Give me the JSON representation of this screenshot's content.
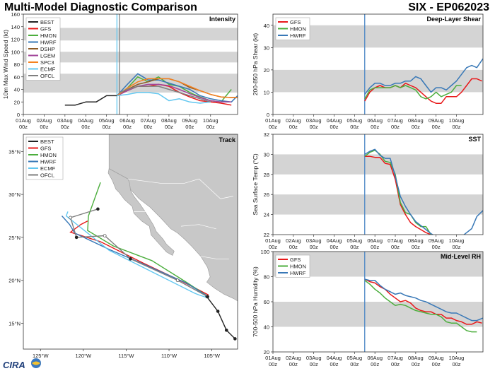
{
  "header": {
    "title": "Multi-Model Diagnostic Comparison",
    "storm_id": "SIX - EP062023"
  },
  "colors": {
    "BEST": "#222222",
    "GFS": "#e8191a",
    "HMON": "#4cae3d",
    "HWRF": "#3878b7",
    "DSHP": "#8c5a24",
    "LGEM": "#a2459a",
    "SPC3": "#f58220",
    "ECMF": "#62c7f0",
    "OFCL": "#7f7f7f",
    "band": "#d4d4d4",
    "land": "#c8c8c8",
    "vline": "#4a86c5"
  },
  "time_axis": {
    "tick_labels": [
      "01Aug\n00z",
      "02Aug\n00z",
      "03Aug\n00z",
      "04Aug\n00z",
      "05Aug\n00z",
      "06Aug\n00z",
      "07Aug\n00z",
      "08Aug\n00z",
      "09Aug\n00z",
      "10Aug\n00z"
    ],
    "xlim": [
      0,
      10.3
    ]
  },
  "footer": {
    "logo_text": "CIRA"
  },
  "chart_data": [
    {
      "id": "intensity",
      "type": "line",
      "title": "Intensity",
      "ylabel": "10m Max Wind Speed (kt)",
      "ylim": [
        0,
        160
      ],
      "yticks": [
        0,
        20,
        40,
        60,
        80,
        100,
        120,
        140,
        160
      ],
      "bands": [
        [
          35,
          65
        ],
        [
          83,
          100
        ],
        [
          118,
          138
        ]
      ],
      "vlines": [
        {
          "x": 4.5,
          "color": "#62c7f0"
        },
        {
          "x": 4.62,
          "color": "#7f7f7f"
        }
      ],
      "legend": [
        "BEST",
        "GFS",
        "HMON",
        "HWRF",
        "DSHP",
        "LGEM",
        "SPC3",
        "ECMF",
        "OFCL"
      ],
      "series": [
        {
          "name": "BEST",
          "x": [
            2.0,
            2.5,
            3.0,
            3.5,
            4.0,
            4.5
          ],
          "values": [
            15,
            15,
            20,
            20,
            30,
            30
          ]
        },
        {
          "name": "GFS",
          "x": [
            4.5,
            5.0,
            5.5,
            6.0,
            6.5,
            7.0,
            7.5,
            8.0,
            8.5,
            9.0,
            9.5,
            10.0
          ],
          "values": [
            30,
            38,
            45,
            45,
            48,
            45,
            35,
            28,
            22,
            20,
            18,
            15
          ]
        },
        {
          "name": "HMON",
          "x": [
            4.5,
            5.0,
            5.5,
            6.0,
            6.5,
            7.0,
            7.5,
            8.0,
            8.5,
            9.0,
            9.5,
            10.0
          ],
          "values": [
            30,
            42,
            60,
            52,
            60,
            48,
            45,
            35,
            28,
            22,
            20,
            40
          ]
        },
        {
          "name": "HWRF",
          "x": [
            4.5,
            5.0,
            5.5,
            6.0,
            6.5,
            7.0,
            7.5,
            8.0,
            8.5,
            9.0,
            9.5,
            10.0,
            10.3
          ],
          "values": [
            30,
            48,
            65,
            55,
            55,
            50,
            45,
            40,
            30,
            25,
            22,
            20,
            30
          ]
        },
        {
          "name": "DSHP",
          "x": [
            4.5,
            5.0,
            5.5,
            6.0,
            6.5,
            7.0,
            7.5,
            8.0,
            8.5,
            9.0,
            9.5,
            10.0,
            10.3
          ],
          "values": [
            30,
            40,
            48,
            52,
            57,
            57,
            52,
            43,
            38,
            32,
            28,
            27,
            27
          ]
        },
        {
          "name": "LGEM",
          "x": [
            4.5,
            5.0,
            5.5,
            6.0,
            6.5,
            7.0,
            7.5,
            8.0,
            8.5,
            9.0,
            9.5,
            10.0
          ],
          "values": [
            30,
            38,
            45,
            48,
            48,
            46,
            40,
            33,
            27,
            22,
            20,
            20
          ]
        },
        {
          "name": "SPC3",
          "x": [
            4.5,
            5.0,
            5.5,
            6.0,
            6.5,
            7.0,
            7.5,
            8.0,
            8.5,
            9.0,
            9.5,
            10.0,
            10.3
          ],
          "values": [
            30,
            42,
            52,
            57,
            57,
            57,
            52,
            45,
            38,
            32,
            28,
            27,
            27
          ]
        },
        {
          "name": "ECMF",
          "x": [
            4.5,
            5.0,
            5.5,
            6.0,
            6.5,
            7.0,
            7.5,
            8.0,
            8.5,
            9.0
          ],
          "values": [
            30,
            32,
            35,
            35,
            33,
            22,
            25,
            20,
            18,
            20
          ]
        },
        {
          "name": "OFCL",
          "x": [
            4.62,
            5.0,
            5.5,
            6.0,
            6.5,
            7.0,
            7.5,
            8.0,
            8.5,
            9.0
          ],
          "values": [
            35,
            40,
            45,
            45,
            45,
            40,
            35,
            30,
            25,
            20
          ]
        }
      ]
    },
    {
      "id": "shear",
      "type": "line",
      "title": "Deep-Layer Shear",
      "ylabel": "200-850 hPa Shear (kt)",
      "ylim": [
        0,
        45
      ],
      "yticks": [
        0,
        10,
        20,
        30,
        40
      ],
      "bands": [
        [
          10,
          20
        ],
        [
          30,
          40
        ]
      ],
      "vlines": [
        {
          "x": 4.5,
          "color": "#4a86c5"
        }
      ],
      "legend": [
        "GFS",
        "HMON",
        "HWRF"
      ],
      "series": [
        {
          "name": "GFS",
          "x": [
            4.5,
            4.75,
            5.0,
            5.25,
            5.5,
            5.75,
            6.0,
            6.25,
            6.5,
            6.75,
            7.0,
            7.25,
            7.5,
            7.75,
            8.0,
            8.25,
            8.5,
            8.75,
            9.0,
            9.25,
            9.5,
            9.75,
            10.0,
            10.25
          ],
          "values": [
            6,
            10,
            12,
            13,
            12,
            12,
            13,
            12,
            14,
            13,
            12,
            10,
            8,
            6,
            5,
            5,
            8,
            8,
            8,
            10,
            13,
            16,
            16,
            15
          ]
        },
        {
          "name": "HMON",
          "x": [
            4.5,
            4.75,
            5.0,
            5.25,
            5.5,
            5.75,
            6.0,
            6.25,
            6.5,
            6.75,
            7.0,
            7.25,
            7.5,
            7.75,
            8.0,
            8.25,
            8.5,
            8.75,
            9.0,
            9.25
          ],
          "values": [
            7,
            11,
            12,
            12,
            12,
            12,
            13,
            12,
            13,
            12,
            11,
            8,
            7,
            8,
            10,
            8,
            9,
            10,
            13,
            13
          ]
        },
        {
          "name": "HWRF",
          "x": [
            4.5,
            4.75,
            5.0,
            5.25,
            5.5,
            5.75,
            6.0,
            6.25,
            6.5,
            6.75,
            7.0,
            7.25,
            7.5,
            7.75,
            8.0,
            8.25,
            8.5,
            8.75,
            9.0,
            9.25,
            9.5,
            9.75,
            10.0,
            10.3
          ],
          "values": [
            9,
            12,
            14,
            14,
            13,
            13,
            14,
            14,
            15,
            15,
            17,
            16,
            13,
            10,
            12,
            12,
            11,
            13,
            15,
            18,
            21,
            22,
            21,
            25
          ]
        }
      ]
    },
    {
      "id": "track",
      "type": "scatter",
      "title": "Track",
      "xlim": [
        -127,
        -102
      ],
      "ylim": [
        12,
        37
      ],
      "xticks": [
        -125,
        -120,
        -115,
        -110,
        -105
      ],
      "xtick_labels": [
        "125°W",
        "120°W",
        "115°W",
        "110°W",
        "105°W"
      ],
      "yticks": [
        15,
        20,
        25,
        30,
        35
      ],
      "ytick_labels": [
        "15°N",
        "20°N",
        "25°N",
        "30°N",
        "35°N"
      ],
      "legend": [
        "BEST",
        "GFS",
        "HMON",
        "HWRF",
        "ECMF",
        "OFCL"
      ],
      "series": [
        {
          "name": "BEST",
          "lon": [
            -102.3,
            -103.3,
            -104.3,
            -105.6
          ],
          "lat": [
            13.2,
            14.2,
            16.4,
            18.1
          ]
        },
        {
          "name": "GFS",
          "lon": [
            -105.4,
            -108.3,
            -113.0,
            -118.0,
            -121.5,
            -120.3,
            -119.5
          ],
          "lat": [
            18.3,
            19.8,
            22.0,
            24.5,
            25.6,
            26.5,
            26.9
          ]
        },
        {
          "name": "HMON",
          "lon": [
            -105.4,
            -108.0,
            -112.0,
            -116.5,
            -119.5,
            -119.4,
            -118.0
          ],
          "lat": [
            18.1,
            19.8,
            22.3,
            24.0,
            25.8,
            27.5,
            31.4
          ]
        },
        {
          "name": "HWRF",
          "lon": [
            -105.4,
            -108.0,
            -113.0,
            -117.0,
            -121.0,
            -121.6,
            -122.5
          ],
          "lat": [
            18.1,
            19.7,
            21.9,
            23.6,
            25.5,
            26.5,
            27.5
          ]
        },
        {
          "name": "ECMF",
          "lon": [
            -105.6,
            -106.5,
            -107.0,
            -112.0,
            -117.0,
            -122.0,
            -121.8
          ],
          "lat": [
            18.0,
            18.3,
            18.5,
            21.0,
            23.5,
            27.5,
            28.0
          ]
        },
        {
          "name": "OFCL",
          "lon": [
            -105.5,
            -109.0,
            -114.5,
            -117.5,
            -120.8,
            -121.5,
            -118.3
          ],
          "lat": [
            18.1,
            20.0,
            22.5,
            25.2,
            25.0,
            27.3,
            28.3
          ]
        }
      ]
    },
    {
      "id": "sst",
      "type": "line",
      "title": "SST",
      "ylabel": "Sea Surface Temp (°C)",
      "ylim": [
        22,
        32
      ],
      "yticks": [
        22,
        24,
        26,
        28,
        30,
        32
      ],
      "bands": [
        [
          24,
          26
        ],
        [
          28,
          30
        ]
      ],
      "vlines": [
        {
          "x": 4.5,
          "color": "#4a86c5"
        }
      ],
      "legend": [],
      "series": [
        {
          "name": "GFS",
          "x": [
            4.5,
            4.75,
            5.0,
            5.25,
            5.5,
            5.75,
            6.0,
            6.25,
            6.5,
            6.75,
            7.0,
            7.25,
            7.5,
            7.75,
            8.0
          ],
          "values": [
            29.8,
            29.8,
            29.7,
            29.7,
            29.1,
            29.0,
            27.5,
            25.0,
            24.0,
            23.2,
            22.8,
            22.5,
            22.2,
            22.0,
            21.8
          ]
        },
        {
          "name": "HMON",
          "x": [
            4.5,
            4.75,
            5.0,
            5.25,
            5.5,
            5.75,
            6.0,
            6.25,
            6.5,
            6.75,
            7.0,
            7.25,
            7.5,
            7.75
          ],
          "values": [
            29.8,
            30.2,
            30.4,
            30.0,
            29.3,
            29.2,
            28.0,
            25.2,
            24.2,
            24.0,
            23.2,
            22.8,
            22.8,
            22.0
          ]
        },
        {
          "name": "HWRF",
          "x": [
            4.5,
            4.75,
            5.0,
            5.25,
            5.5,
            5.75,
            6.0,
            6.25,
            6.5,
            6.75,
            7.0,
            7.25,
            7.5,
            7.75,
            8.0,
            8.25,
            8.5,
            8.75,
            9.0,
            9.25,
            9.5,
            9.75,
            10.0,
            10.3
          ],
          "values": [
            30.0,
            30.3,
            30.5,
            29.9,
            29.6,
            29.6,
            27.8,
            25.8,
            24.8,
            24.0,
            23.3,
            22.9,
            22.5,
            22.1,
            21.8,
            21.6,
            21.5,
            21.5,
            21.6,
            21.8,
            22.2,
            22.6,
            23.8,
            24.4
          ]
        }
      ]
    },
    {
      "id": "rh",
      "type": "line",
      "title": "Mid-Level RH",
      "ylabel": "700-500 hPa Humidity (%)",
      "ylim": [
        20,
        100
      ],
      "yticks": [
        20,
        40,
        60,
        80,
        100
      ],
      "bands": [
        [
          40,
          60
        ],
        [
          80,
          100
        ]
      ],
      "vlines": [
        {
          "x": 4.5,
          "color": "#4a86c5"
        }
      ],
      "legend": [
        "GFS",
        "HMON",
        "HWRF"
      ],
      "series": [
        {
          "name": "GFS",
          "x": [
            4.5,
            4.75,
            5.0,
            5.25,
            5.5,
            5.75,
            6.0,
            6.25,
            6.5,
            6.75,
            7.0,
            7.25,
            7.5,
            7.75,
            8.0,
            8.25,
            8.5,
            8.75,
            9.0,
            9.25,
            9.5,
            9.75,
            10.0,
            10.25
          ],
          "values": [
            78,
            76,
            75,
            72,
            70,
            66,
            63,
            60,
            61,
            59,
            55,
            53,
            52,
            52,
            50,
            50,
            47,
            47,
            45,
            44,
            42,
            42,
            44,
            43
          ]
        },
        {
          "name": "HMON",
          "x": [
            4.5,
            4.75,
            5.0,
            5.25,
            5.5,
            5.75,
            6.0,
            6.25,
            6.5,
            6.75,
            7.0,
            7.25,
            7.5,
            7.75,
            8.0,
            8.25,
            8.5,
            8.75,
            9.0,
            9.25,
            9.5,
            9.75,
            10.0
          ],
          "values": [
            77,
            74,
            70,
            67,
            63,
            60,
            57,
            58,
            57,
            55,
            53,
            52,
            51,
            50,
            50,
            48,
            44,
            43,
            43,
            40,
            37,
            36,
            36
          ]
        },
        {
          "name": "HWRF",
          "x": [
            4.5,
            4.75,
            5.0,
            5.25,
            5.5,
            5.75,
            6.0,
            6.25,
            6.5,
            6.75,
            7.0,
            7.25,
            7.5,
            7.75,
            8.0,
            8.25,
            8.5,
            8.75,
            9.0,
            9.25,
            9.5,
            9.75,
            10.0,
            10.3
          ],
          "values": [
            78,
            77,
            77,
            73,
            70,
            68,
            66,
            67,
            65,
            64,
            63,
            61,
            60,
            58,
            56,
            54,
            52,
            51,
            51,
            49,
            47,
            45,
            45,
            47
          ]
        }
      ]
    }
  ]
}
